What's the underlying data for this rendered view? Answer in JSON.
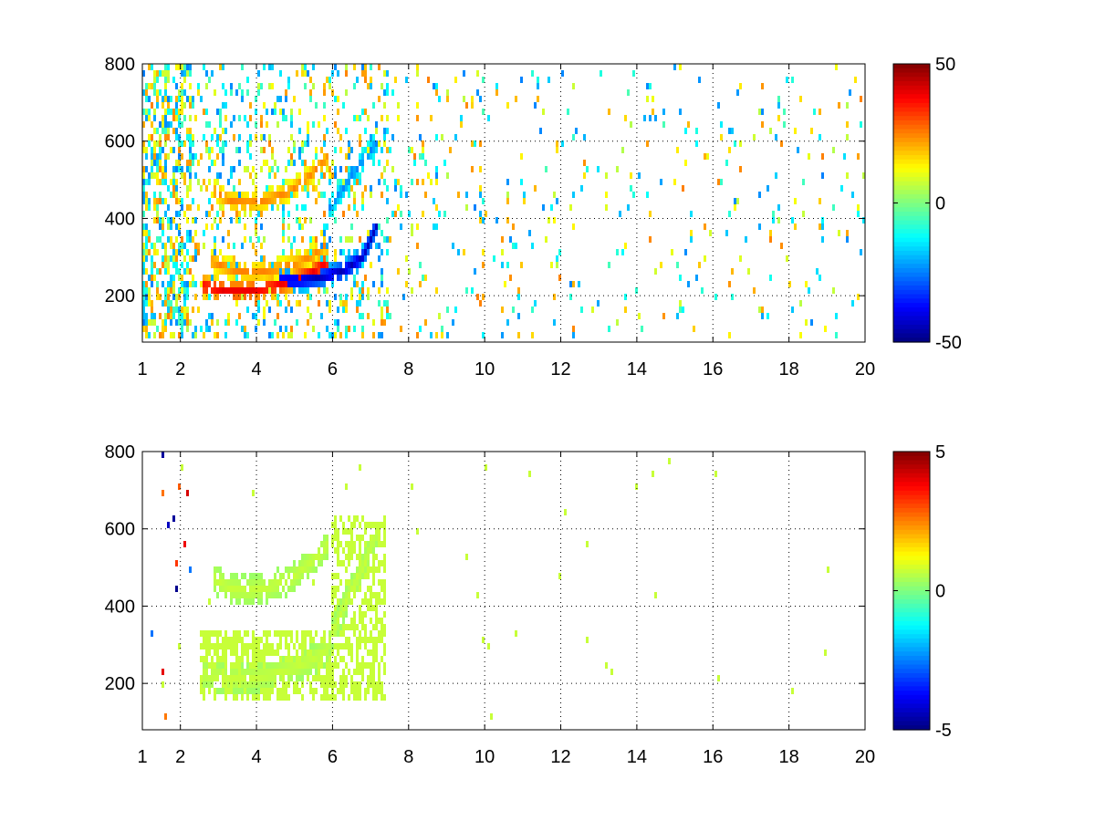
{
  "chart_data": [
    {
      "type": "heatmap",
      "title": "",
      "xlabel": "",
      "ylabel": "",
      "xlim": [
        1,
        20
      ],
      "ylim": [
        80,
        800
      ],
      "xticks": [
        "1",
        "2",
        "4",
        "6",
        "8",
        "10",
        "12",
        "14",
        "16",
        "18",
        "20"
      ],
      "xtick_values": [
        1,
        2,
        4,
        6,
        8,
        10,
        12,
        14,
        16,
        18,
        20
      ],
      "yticks": [
        "200",
        "400",
        "600",
        "800"
      ],
      "ytick_values": [
        200,
        400,
        600,
        800
      ],
      "grid": true,
      "colormap": "jet",
      "clim": [
        -50,
        50
      ],
      "colorbar_ticks": [
        "50",
        "0",
        "-50"
      ],
      "colorbar_tick_values": [
        50,
        0,
        -50
      ],
      "ridges": [
        {
          "x": [
            2.6,
            3.2,
            3.8,
            4.4,
            5.0,
            5.5,
            5.9
          ],
          "y": [
            225,
            212,
            212,
            222,
            240,
            262,
            290
          ],
          "value": 40
        },
        {
          "x": [
            4.6,
            5.2,
            5.8,
            6.3,
            6.8,
            7.2
          ],
          "y": [
            238,
            240,
            250,
            265,
            300,
            390
          ],
          "value": -45
        },
        {
          "x": [
            2.8,
            3.4,
            4.0,
            4.6,
            5.1,
            5.5,
            5.8
          ],
          "y": [
            290,
            265,
            260,
            270,
            285,
            305,
            330
          ],
          "value": 25
        },
        {
          "x": [
            2.9,
            3.3,
            3.8,
            4.3,
            4.9,
            5.4,
            5.9
          ],
          "y": [
            470,
            445,
            440,
            448,
            470,
            510,
            560
          ],
          "value": 25
        },
        {
          "x": [
            5.9,
            6.3,
            6.8,
            7.2
          ],
          "y": [
            425,
            480,
            550,
            600
          ],
          "value": -25
        }
      ]
    },
    {
      "type": "heatmap",
      "title": "",
      "xlabel": "",
      "ylabel": "",
      "xlim": [
        1,
        20
      ],
      "ylim": [
        80,
        800
      ],
      "xticks": [
        "1",
        "2",
        "4",
        "6",
        "8",
        "10",
        "12",
        "14",
        "16",
        "18",
        "20"
      ],
      "xtick_values": [
        1,
        2,
        4,
        6,
        8,
        10,
        12,
        14,
        16,
        18,
        20
      ],
      "yticks": [
        "200",
        "400",
        "600",
        "800"
      ],
      "ytick_values": [
        200,
        400,
        600,
        800
      ],
      "grid": true,
      "colormap": "jet",
      "clim": [
        -5,
        5
      ],
      "colorbar_ticks": [
        "5",
        "0",
        "-5"
      ],
      "colorbar_tick_values": [
        5,
        0,
        -5
      ],
      "ridges": [
        {
          "x": [
            2.6,
            3.2,
            3.8,
            4.4,
            5.0,
            5.5,
            5.9
          ],
          "y": [
            225,
            212,
            212,
            222,
            240,
            262,
            290
          ],
          "value": 0.7
        },
        {
          "x": [
            2.9,
            3.3,
            3.8,
            4.3,
            4.9,
            5.4,
            5.9
          ],
          "y": [
            470,
            445,
            440,
            448,
            470,
            510,
            560
          ],
          "value": 0.7
        },
        {
          "x": [
            5.9,
            6.3,
            6.8,
            7.2
          ],
          "y": [
            300,
            400,
            500,
            600
          ],
          "value": 0.7
        }
      ]
    }
  ]
}
